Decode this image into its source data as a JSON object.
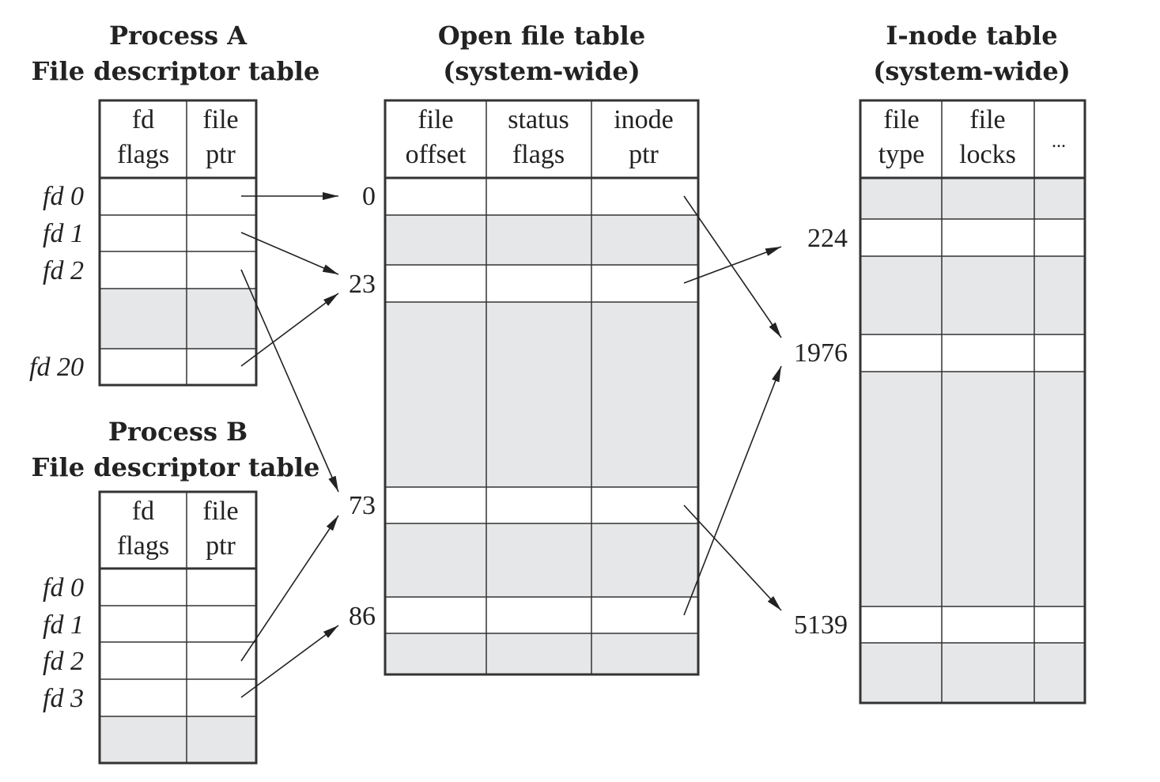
{
  "process_a": {
    "title_line1": "Process A",
    "title_line2": "File descriptor table",
    "col1_line1": "fd",
    "col1_line2": "flags",
    "col2_line1": "file",
    "col2_line2": "ptr",
    "fd_labels": [
      "fd 0",
      "fd 1",
      "fd 2",
      "fd 20"
    ]
  },
  "process_b": {
    "title_line1": "Process B",
    "title_line2": "File descriptor table",
    "col1_line1": "fd",
    "col1_line2": "flags",
    "col2_line1": "file",
    "col2_line2": "ptr",
    "fd_labels": [
      "fd 0",
      "fd 1",
      "fd 2",
      "fd 3"
    ]
  },
  "open_file_table": {
    "title_line1": "Open file table",
    "title_line2": "(system-wide)",
    "col1_line1": "file",
    "col1_line2": "offset",
    "col2_line1": "status",
    "col2_line2": "flags",
    "col3_line1": "inode",
    "col3_line2": "ptr",
    "entry_labels": [
      "0",
      "23",
      "73",
      "86"
    ]
  },
  "inode_table": {
    "title_line1": "I-node table",
    "title_line2": "(system-wide)",
    "col1_line1": "file",
    "col1_line2": "type",
    "col2_line1": "file",
    "col2_line2": "locks",
    "col3": "...",
    "entry_labels": [
      "224",
      "1976",
      "5139"
    ]
  }
}
